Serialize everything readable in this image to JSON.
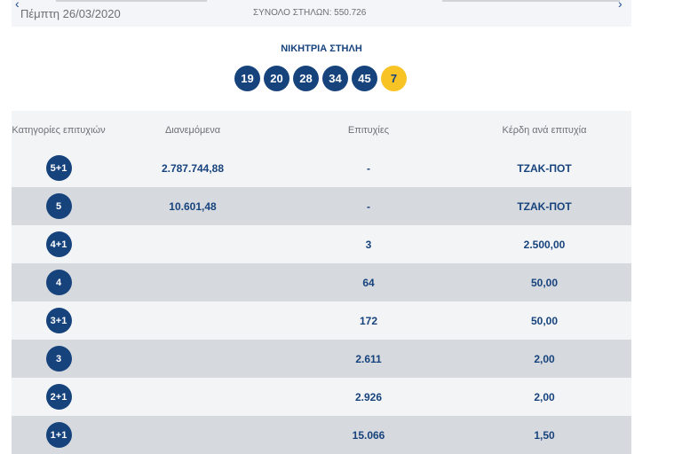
{
  "header": {
    "date": "Πέμπτη 26/03/2020",
    "total_label": "ΣΥΝΟΛΟ ΣΤΗΛΩΝ: 550.726",
    "prev": "‹",
    "next": "›"
  },
  "winning": {
    "title": "ΝΙΚΗΤΡΙΑ ΣΤΗΛΗ",
    "numbers": [
      "19",
      "20",
      "28",
      "34",
      "45"
    ],
    "joker": "7"
  },
  "table": {
    "headers": [
      "Κατηγορίες επιτυχιών",
      "Διανεμόμενα",
      "Επιτυχίες",
      "Κέρδη ανά επιτυχία"
    ],
    "rows": [
      {
        "cat": "5+1",
        "dist": "2.787.744,88",
        "wins": "-",
        "prize": "ΤΖΑΚ-ΠΟΤ"
      },
      {
        "cat": "5",
        "dist": "10.601,48",
        "wins": "-",
        "prize": "ΤΖΑΚ-ΠΟΤ"
      },
      {
        "cat": "4+1",
        "dist": "",
        "wins": "3",
        "prize": "2.500,00"
      },
      {
        "cat": "4",
        "dist": "",
        "wins": "64",
        "prize": "50,00"
      },
      {
        "cat": "3+1",
        "dist": "",
        "wins": "172",
        "prize": "50,00"
      },
      {
        "cat": "3",
        "dist": "",
        "wins": "2.611",
        "prize": "2,00"
      },
      {
        "cat": "2+1",
        "dist": "",
        "wins": "2.926",
        "prize": "2,00"
      },
      {
        "cat": "1+1",
        "dist": "",
        "wins": "15.066",
        "prize": "1,50"
      }
    ]
  }
}
